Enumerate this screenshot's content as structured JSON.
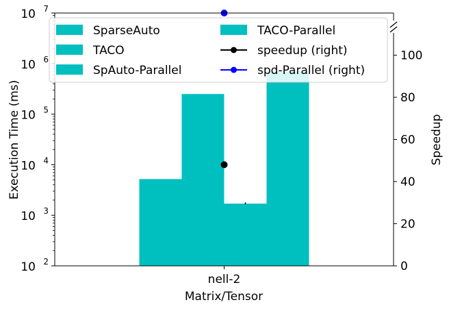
{
  "chart_data": {
    "type": "bar",
    "title": "",
    "xlabel": "Matrix/Tensor",
    "ylabel": "Execution Time (ms)",
    "y2label": "Speedup",
    "categories": [
      "nell-2"
    ],
    "yscale": "log",
    "ylim": [
      100,
      10000000
    ],
    "y2lim": [
      0,
      120
    ],
    "yticks": [
      {
        "value": 100,
        "base": "10",
        "exp": "2"
      },
      {
        "value": 1000,
        "base": "10",
        "exp": "3"
      },
      {
        "value": 10000,
        "base": "10",
        "exp": "4"
      },
      {
        "value": 100000,
        "base": "10",
        "exp": "5"
      },
      {
        "value": 1000000,
        "base": "10",
        "exp": "6"
      },
      {
        "value": 10000000,
        "base": "10",
        "exp": "7"
      }
    ],
    "y2ticks": [
      "0",
      "20",
      "40",
      "60",
      "80",
      "100"
    ],
    "bar_color": "#00bfbf",
    "series": [
      {
        "name": "SparseAuto",
        "values": [
          5200
        ]
      },
      {
        "name": "TACO",
        "values": [
          250000
        ]
      },
      {
        "name": "SpAuto-Parallel",
        "values": [
          1700
        ]
      },
      {
        "name": "TACO-Parallel",
        "values": [
          700000
        ]
      }
    ],
    "lines": [
      {
        "name": "speedup (right)",
        "color": "#000000",
        "values": [
          48
        ]
      },
      {
        "name": "spd-Parallel (right)",
        "color": "#0000ff",
        "values": [
          120
        ]
      }
    ],
    "errorbar": {
      "series": "SpAuto-Parallel",
      "low": 1650,
      "high": 1800
    },
    "legend": {
      "location": "top",
      "columns": 2
    },
    "grid": false
  }
}
